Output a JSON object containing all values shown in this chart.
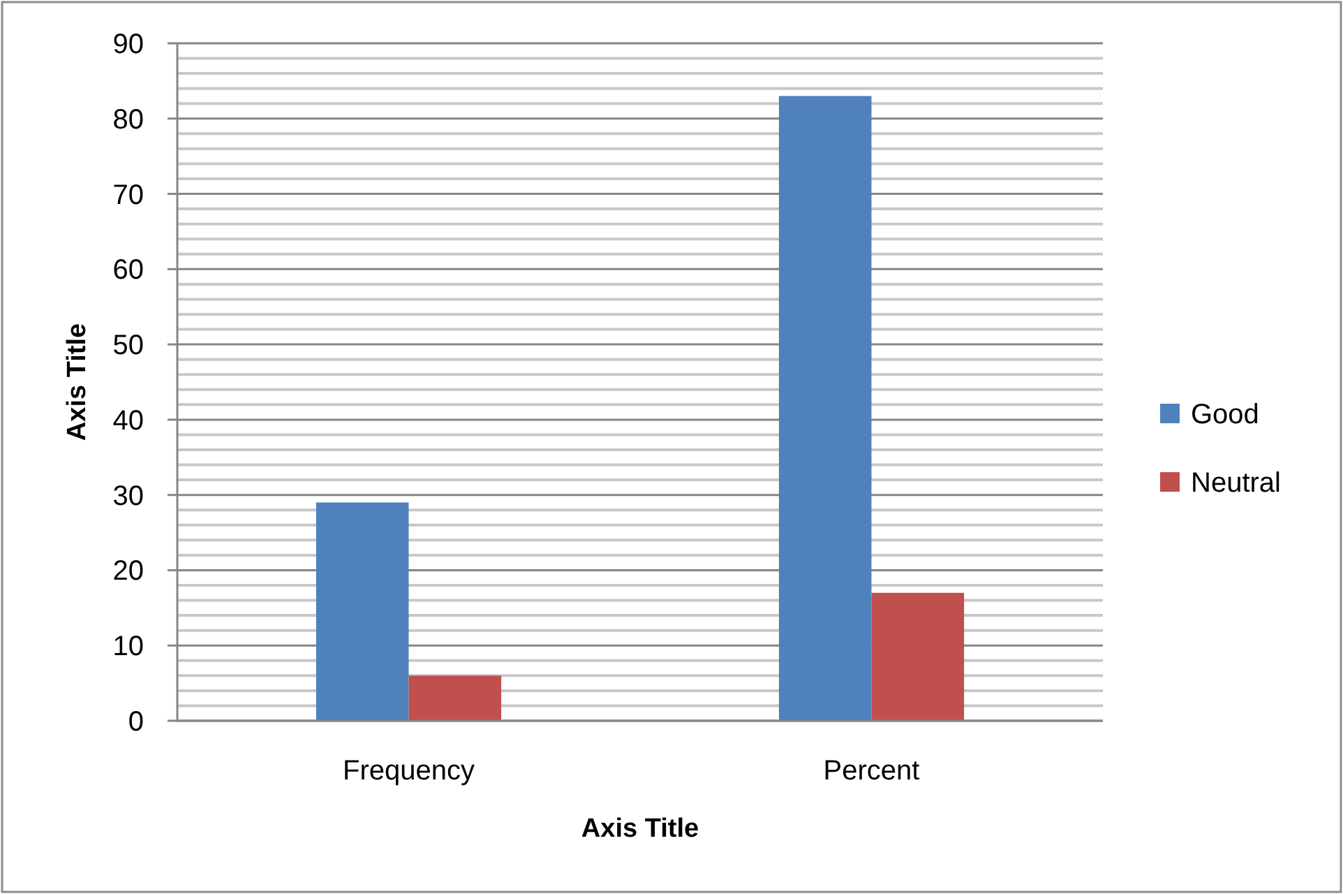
{
  "chart_data": {
    "type": "bar",
    "categories": [
      "Frequency",
      "Percent"
    ],
    "series": [
      {
        "name": "Good",
        "color": "#4f81bd",
        "values": [
          29,
          83
        ]
      },
      {
        "name": "Neutral",
        "color": "#c0504d",
        "values": [
          6,
          17
        ]
      }
    ],
    "xlabel": "Axis Title",
    "ylabel": "Axis Title",
    "ylim": [
      0,
      90
    ],
    "yticks": [
      0,
      {
        "value": 2,
        "label": null
      },
      {
        "value": 4,
        "label": null
      },
      {
        "value": 6,
        "label": null
      },
      {
        "value": 8,
        "label": null
      },
      10,
      {
        "value": 12,
        "label": null
      },
      {
        "value": 14,
        "label": null
      },
      {
        "value": 16,
        "label": null
      },
      {
        "value": 18,
        "label": null
      },
      20,
      {
        "value": 22,
        "label": null
      },
      {
        "value": 24,
        "label": null
      },
      {
        "value": 26,
        "label": null
      },
      {
        "value": 28,
        "label": null
      },
      30,
      {
        "value": 32,
        "label": null
      },
      {
        "value": 34,
        "label": null
      },
      {
        "value": 36,
        "label": null
      },
      {
        "value": 38,
        "label": null
      },
      40,
      {
        "value": 42,
        "label": null
      },
      {
        "value": 44,
        "label": null
      },
      {
        "value": 46,
        "label": null
      },
      {
        "value": 48,
        "label": null
      },
      50,
      {
        "value": 52,
        "label": null
      },
      {
        "value": 54,
        "label": null
      },
      {
        "value": 56,
        "label": null
      },
      {
        "value": 58,
        "label": null
      },
      60,
      {
        "value": 62,
        "label": null
      },
      {
        "value": 64,
        "label": null
      },
      {
        "value": 66,
        "label": null
      },
      {
        "value": 68,
        "label": null
      },
      70,
      {
        "value": 72,
        "label": null
      },
      {
        "value": 74,
        "label": null
      },
      {
        "value": 76,
        "label": null
      },
      {
        "value": 78,
        "label": null
      },
      80,
      {
        "value": 82,
        "label": null
      },
      {
        "value": 84,
        "label": null
      },
      {
        "value": 86,
        "label": null
      },
      {
        "value": 88,
        "label": null
      },
      90
    ],
    "grid": "y",
    "legend": "right"
  }
}
